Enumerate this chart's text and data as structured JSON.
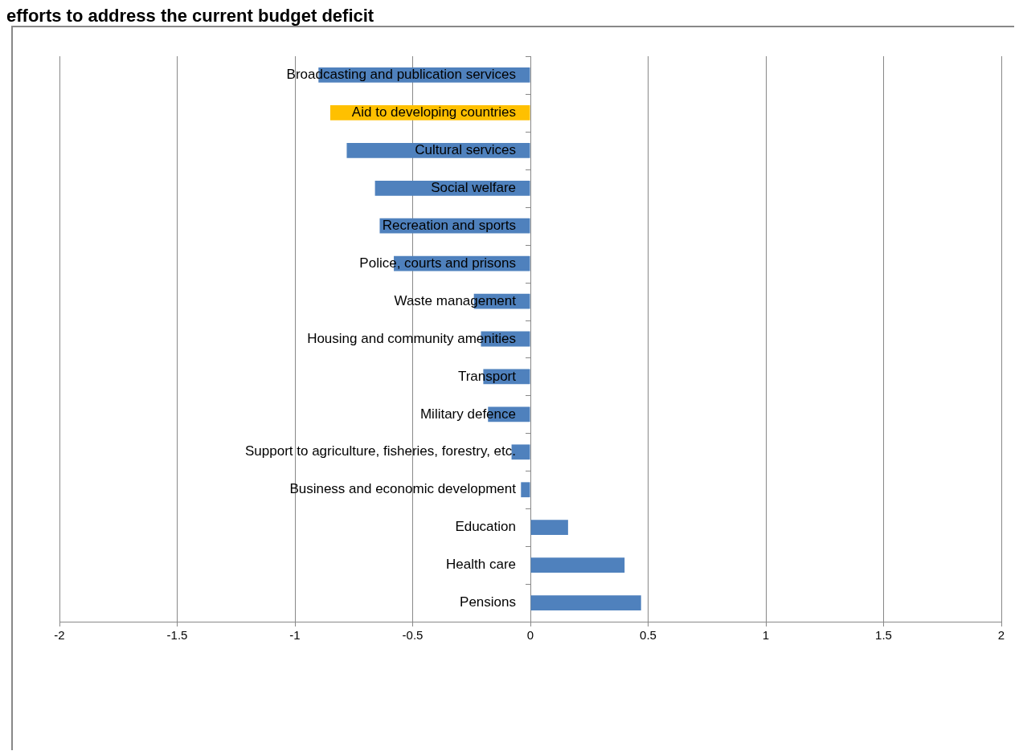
{
  "chart_data": {
    "type": "bar",
    "orientation": "horizontal",
    "title": "efforts to address the current budget deficit",
    "categories": [
      "Broadcasting and publication services",
      "Aid to developing countries",
      "Cultural services",
      "Social welfare",
      "Recreation and sports",
      "Police, courts and prisons",
      "Waste management",
      "Housing and community amenities",
      "Transport",
      "Military defence",
      "Support to agriculture, fisheries, forestry, etc.",
      "Business and economic development",
      "Education",
      "Health care",
      "Pensions"
    ],
    "values": [
      -0.9,
      -0.85,
      -0.78,
      -0.66,
      -0.64,
      -0.58,
      -0.24,
      -0.21,
      -0.2,
      -0.18,
      -0.08,
      -0.04,
      0.16,
      0.4,
      0.47
    ],
    "colors": [
      "#4f81bd",
      "#ffc000",
      "#4f81bd",
      "#4f81bd",
      "#4f81bd",
      "#4f81bd",
      "#4f81bd",
      "#4f81bd",
      "#4f81bd",
      "#4f81bd",
      "#4f81bd",
      "#4f81bd",
      "#4f81bd",
      "#4f81bd",
      "#4f81bd"
    ],
    "xlim": [
      -2,
      2
    ],
    "xticks": [
      -2,
      -1.5,
      -1,
      -0.5,
      0,
      0.5,
      1,
      1.5,
      2
    ],
    "grid": "x",
    "legend": false
  }
}
